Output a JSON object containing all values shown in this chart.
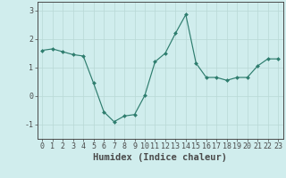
{
  "x": [
    0,
    1,
    2,
    3,
    4,
    5,
    6,
    7,
    8,
    9,
    10,
    11,
    12,
    13,
    14,
    15,
    16,
    17,
    18,
    19,
    20,
    21,
    22,
    23
  ],
  "y": [
    1.6,
    1.65,
    1.55,
    1.45,
    1.4,
    0.45,
    -0.55,
    -0.9,
    -0.7,
    -0.65,
    0.02,
    1.2,
    1.5,
    2.2,
    2.85,
    1.15,
    0.65,
    0.65,
    0.55,
    0.65,
    0.65,
    1.05,
    1.3,
    1.3
  ],
  "line_color": "#2e7d6e",
  "marker": "D",
  "marker_size": 2.0,
  "bg_color": "#d0eded",
  "grid_color": "#b8d8d5",
  "axis_color": "#4a4a4a",
  "xlabel": "Humidex (Indice chaleur)",
  "xlabel_fontsize": 7.5,
  "tick_fontsize": 6.0,
  "ylim": [
    -1.5,
    3.3
  ],
  "xlim": [
    -0.5,
    23.5
  ],
  "yticks": [
    -1,
    0,
    1,
    2,
    3
  ],
  "xticks": [
    0,
    1,
    2,
    3,
    4,
    5,
    6,
    7,
    8,
    9,
    10,
    11,
    12,
    13,
    14,
    15,
    16,
    17,
    18,
    19,
    20,
    21,
    22,
    23
  ]
}
